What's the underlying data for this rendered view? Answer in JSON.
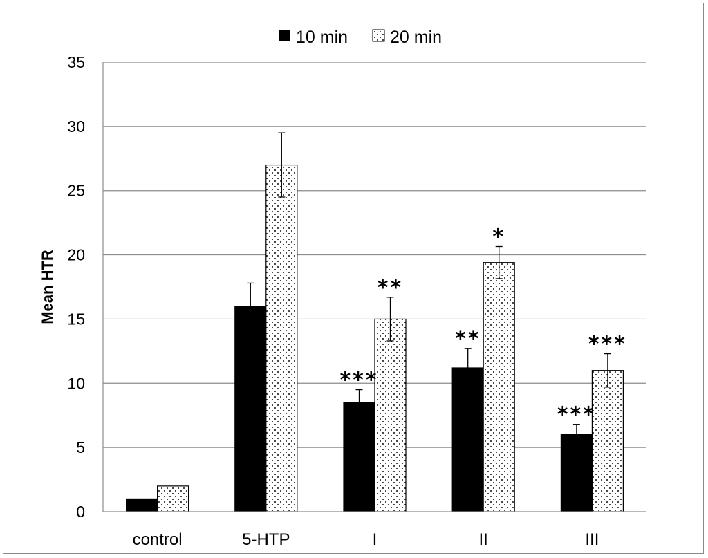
{
  "chart_data": {
    "type": "bar",
    "title": "",
    "xlabel": "",
    "ylabel": "Mean HTR",
    "ylim": [
      0,
      35
    ],
    "yticks": [
      0,
      5,
      10,
      15,
      20,
      25,
      30,
      35
    ],
    "categories": [
      "control",
      "5-HTP",
      "I",
      "II",
      "III"
    ],
    "legend_position": "top-center",
    "grid": true,
    "series": [
      {
        "name": "10 min",
        "fill": "solid",
        "color": "#000000",
        "values": [
          1,
          16,
          8.5,
          11.2,
          6
        ],
        "errors": [
          0,
          1.8,
          1.0,
          1.5,
          0.8
        ],
        "significance": [
          "",
          "",
          "***",
          "**",
          "***"
        ]
      },
      {
        "name": "20 min",
        "fill": "dotted",
        "color": "#ffffff",
        "values": [
          2,
          27,
          15,
          19.4,
          11
        ],
        "errors": [
          0,
          2.5,
          1.7,
          1.25,
          1.3
        ],
        "significance": [
          "",
          "",
          "**",
          "*",
          "***"
        ]
      }
    ]
  }
}
